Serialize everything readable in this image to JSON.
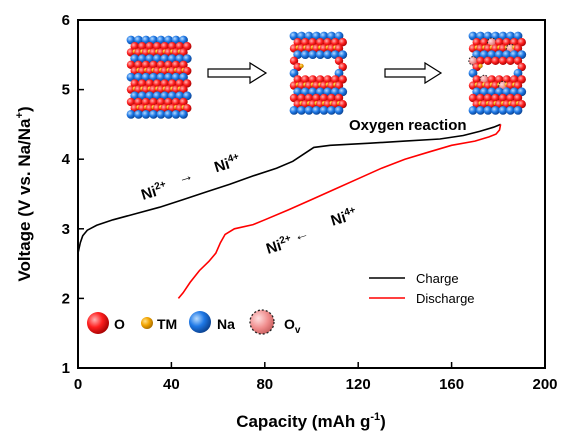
{
  "chart_data": {
    "type": "line",
    "xlabel_main": "Capacity (mAh g",
    "xlabel_sup": "-1",
    "xlabel_end": ")",
    "ylabel_main": "Voltage (V vs. Na/Na",
    "ylabel_sup": "+",
    "ylabel_end": ")",
    "xlim": [
      0,
      200
    ],
    "ylim": [
      1,
      6
    ],
    "xticks": [
      "0",
      "40",
      "80",
      "120",
      "160",
      "200"
    ],
    "yticks": [
      "1",
      "2",
      "3",
      "4",
      "5",
      "6"
    ],
    "legend_position": "lower-right",
    "series": [
      {
        "name": "Charge",
        "color": "#000000",
        "points": [
          [
            0,
            2.65
          ],
          [
            1,
            2.8
          ],
          [
            2,
            2.9
          ],
          [
            4,
            2.98
          ],
          [
            8,
            3.05
          ],
          [
            15,
            3.13
          ],
          [
            25,
            3.22
          ],
          [
            35,
            3.31
          ],
          [
            45,
            3.42
          ],
          [
            55,
            3.53
          ],
          [
            65,
            3.64
          ],
          [
            75,
            3.76
          ],
          [
            85,
            3.87
          ],
          [
            92,
            3.97
          ],
          [
            97,
            4.08
          ],
          [
            101,
            4.17
          ],
          [
            108,
            4.2
          ],
          [
            125,
            4.23
          ],
          [
            140,
            4.26
          ],
          [
            155,
            4.29
          ],
          [
            165,
            4.34
          ],
          [
            172,
            4.4
          ],
          [
            178,
            4.46
          ],
          [
            181,
            4.5
          ]
        ]
      },
      {
        "name": "Discharge",
        "color": "#ff0000",
        "points": [
          [
            181,
            4.5
          ],
          [
            180.5,
            4.42
          ],
          [
            179,
            4.36
          ],
          [
            176,
            4.32
          ],
          [
            170,
            4.26
          ],
          [
            160,
            4.2
          ],
          [
            150,
            4.1
          ],
          [
            140,
            4.0
          ],
          [
            130,
            3.87
          ],
          [
            120,
            3.72
          ],
          [
            110,
            3.57
          ],
          [
            100,
            3.42
          ],
          [
            90,
            3.27
          ],
          [
            80,
            3.13
          ],
          [
            75,
            3.06
          ],
          [
            67,
            3.0
          ],
          [
            63,
            2.92
          ],
          [
            61,
            2.8
          ],
          [
            59,
            2.65
          ],
          [
            56,
            2.53
          ],
          [
            52,
            2.4
          ],
          [
            48,
            2.23
          ],
          [
            45,
            2.08
          ],
          [
            43,
            2.0
          ]
        ]
      }
    ],
    "annotations": {
      "oxygen": "Oxygen reaction",
      "charge_from_base": "Ni",
      "charge_from_sup": "2+",
      "charge_arrow": "→",
      "charge_to_base": "Ni",
      "charge_to_sup": "4+",
      "dis_from_base": "Ni",
      "dis_from_sup": "4+",
      "dis_arrow": "←",
      "dis_to_base": "Ni",
      "dis_to_sup": "2+"
    },
    "atom_key": [
      {
        "label": "O",
        "color": "#ff1f1f"
      },
      {
        "label": "TM",
        "color": "#f2a400"
      },
      {
        "label": "Na",
        "color": "#1e78e6"
      },
      {
        "label_base": "O",
        "label_sub": "v",
        "color": "#f08c8c"
      }
    ]
  }
}
